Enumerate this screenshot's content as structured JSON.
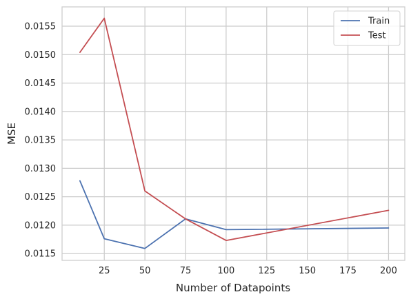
{
  "chart_data": {
    "type": "line",
    "xlabel": "Number of Datapoints",
    "ylabel": "MSE",
    "xlim": [
      -1,
      210
    ],
    "ylim": [
      0.01138,
      0.01584
    ],
    "xticks": [
      25,
      50,
      75,
      100,
      125,
      150,
      175,
      200
    ],
    "yticks": [
      0.0115,
      0.012,
      0.0125,
      0.013,
      0.0135,
      0.014,
      0.0145,
      0.015,
      0.0155
    ],
    "ytick_labels": [
      "0.0115",
      "0.0120",
      "0.0125",
      "0.0130",
      "0.0135",
      "0.0140",
      "0.0145",
      "0.0150",
      "0.0155"
    ],
    "x": [
      10,
      25,
      50,
      75,
      100,
      200
    ],
    "grid": true,
    "legend_position": "top-right",
    "series": [
      {
        "name": "Train",
        "color": "#4c72b0",
        "values": [
          0.01278,
          0.01176,
          0.01159,
          0.01211,
          0.01192,
          0.01195
        ]
      },
      {
        "name": "Test",
        "color": "#c44e52",
        "values": [
          0.01504,
          0.01564,
          0.0126,
          0.01211,
          0.01173,
          0.01226
        ]
      }
    ]
  }
}
